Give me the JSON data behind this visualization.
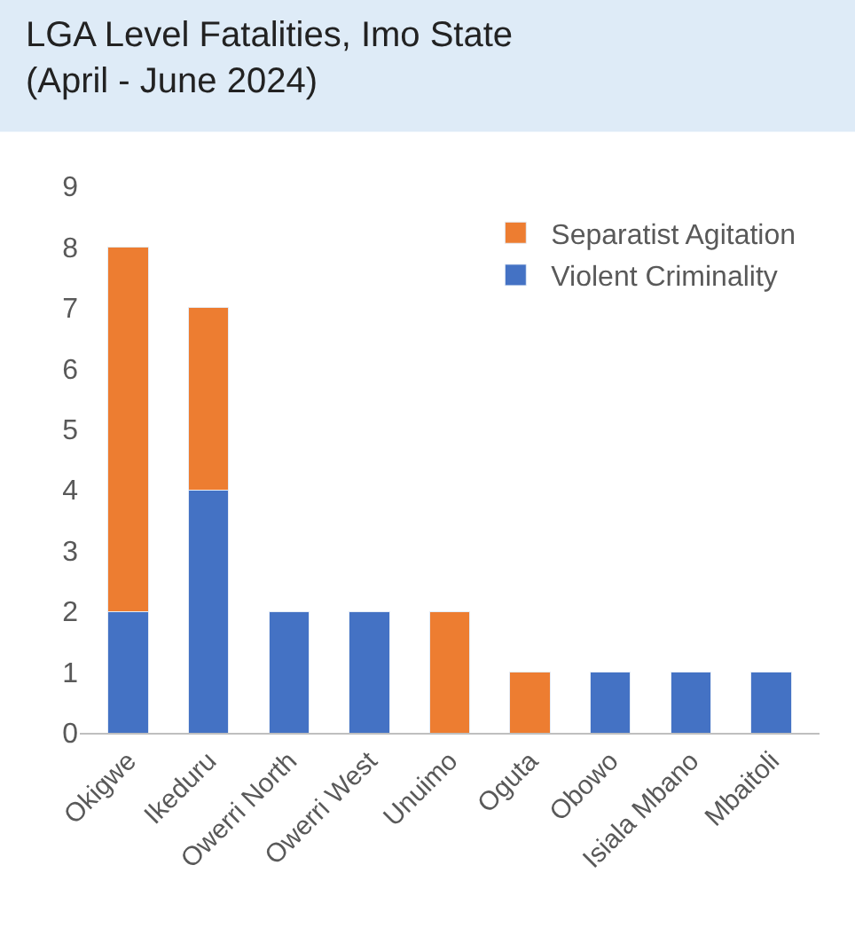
{
  "chart_data": {
    "type": "bar",
    "title": "LGA Level Fatalities, Imo State\n(April - June 2024)",
    "categories": [
      "Okigwe",
      "Ikeduru",
      "Owerri North",
      "Owerri West",
      "Unuimo",
      "Oguta",
      "Obowo",
      "Isiala Mbano",
      "Mbaitoli"
    ],
    "stacked": true,
    "series": [
      {
        "name": "Violent Criminality",
        "color": "#4472c4",
        "values": [
          2,
          4,
          2,
          2,
          null,
          null,
          1,
          1,
          1
        ]
      },
      {
        "name": "Separatist Agitation",
        "color": "#ed7d31",
        "values": [
          6,
          3,
          null,
          null,
          2,
          1,
          null,
          null,
          null
        ]
      }
    ],
    "ylim": [
      0,
      9
    ],
    "yticks": [
      0,
      1,
      2,
      3,
      4,
      5,
      6,
      7,
      8,
      9
    ],
    "legend": "top right"
  }
}
